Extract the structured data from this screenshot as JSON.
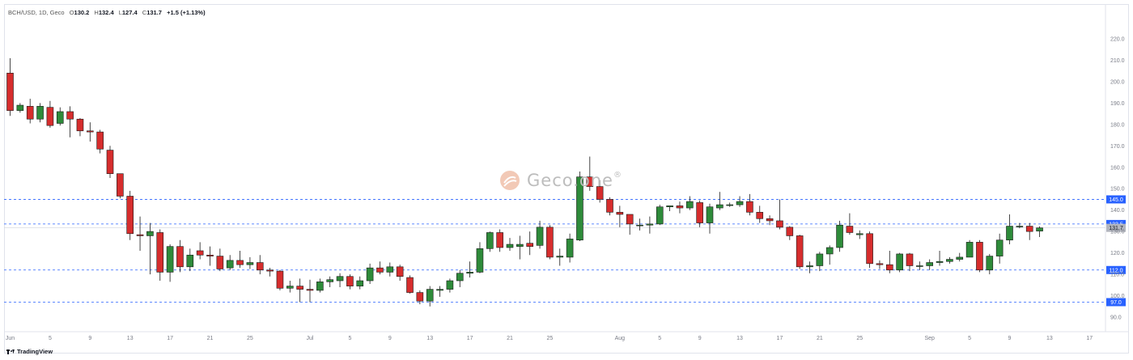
{
  "legend": {
    "symbol": "BCH/USD, 1D, Geco",
    "open_label": "O",
    "open": "130.2",
    "high_label": "H",
    "high": "132.4",
    "low_label": "L",
    "low": "127.4",
    "close_label": "C",
    "close": "131.7",
    "change": "+1.5 (+1.13%)"
  },
  "watermark": {
    "text": "Geco.one",
    "mark": "®"
  },
  "footer": {
    "brand": "TradingView"
  },
  "colors": {
    "up": "#2e8b3a",
    "down": "#d62d2d",
    "level": "#2962ff",
    "current_tag": "#b2b5be"
  },
  "chart_data": {
    "type": "candlestick",
    "symbol": "BCH/USD",
    "interval": "1D",
    "ylim": [
      84,
      225
    ],
    "y_ticks": [
      90.0,
      100.0,
      110.0,
      120.0,
      130.0,
      140.0,
      150.0,
      160.0,
      170.0,
      180.0,
      190.0,
      200.0,
      210.0,
      220.0
    ],
    "x_ticks": [
      {
        "i": 0,
        "label": "Jun"
      },
      {
        "i": 4,
        "label": "5"
      },
      {
        "i": 8,
        "label": "9"
      },
      {
        "i": 12,
        "label": "13"
      },
      {
        "i": 16,
        "label": "17"
      },
      {
        "i": 20,
        "label": "21"
      },
      {
        "i": 24,
        "label": "25"
      },
      {
        "i": 30,
        "label": "Jul"
      },
      {
        "i": 34,
        "label": "5"
      },
      {
        "i": 38,
        "label": "9"
      },
      {
        "i": 42,
        "label": "13"
      },
      {
        "i": 46,
        "label": "17"
      },
      {
        "i": 50,
        "label": "21"
      },
      {
        "i": 54,
        "label": "25"
      },
      {
        "i": 61,
        "label": "Aug"
      },
      {
        "i": 65,
        "label": "5"
      },
      {
        "i": 69,
        "label": "9"
      },
      {
        "i": 73,
        "label": "13"
      },
      {
        "i": 77,
        "label": "17"
      },
      {
        "i": 81,
        "label": "21"
      },
      {
        "i": 85,
        "label": "25"
      },
      {
        "i": 92,
        "label": "Sep"
      },
      {
        "i": 96,
        "label": "5"
      },
      {
        "i": 100,
        "label": "9"
      },
      {
        "i": 104,
        "label": "13"
      },
      {
        "i": 108,
        "label": "17"
      }
    ],
    "levels": [
      {
        "value": 145.0,
        "label": "145.0",
        "style": "dashed"
      },
      {
        "value": 133.5,
        "label": "133.5",
        "style": "dashed"
      },
      {
        "value": 112.0,
        "label": "112.0",
        "style": "dashed"
      },
      {
        "value": 97.0,
        "label": "97.0",
        "style": "dashed"
      }
    ],
    "current_price": {
      "value": 131.7,
      "label": "131.7"
    },
    "candles": [
      [
        204.0,
        186.5,
        211.0,
        184.0
      ],
      [
        186.5,
        189.0,
        190.0,
        185.5
      ],
      [
        188.5,
        182.5,
        192.0,
        180.5
      ],
      [
        182.5,
        188.5,
        190.0,
        181.0
      ],
      [
        188.0,
        179.5,
        191.0,
        178.5
      ],
      [
        180.5,
        186.0,
        188.0,
        179.5
      ],
      [
        186.0,
        182.5,
        188.5,
        174.0
      ],
      [
        182.5,
        177.0,
        183.0,
        174.5
      ],
      [
        177.0,
        176.5,
        181.0,
        172.0
      ],
      [
        176.5,
        168.5,
        177.5,
        166.5
      ],
      [
        168.0,
        157.0,
        170.0,
        155.0
      ],
      [
        157.0,
        146.5,
        157.0,
        145.5
      ],
      [
        146.5,
        129.0,
        149.0,
        126.0
      ],
      [
        128.5,
        128.0,
        137.0,
        121.0
      ],
      [
        128.0,
        130.0,
        134.0,
        110.0
      ],
      [
        129.5,
        111.0,
        131.0,
        107.0
      ],
      [
        111.0,
        123.0,
        124.0,
        106.5
      ],
      [
        123.0,
        113.5,
        126.0,
        111.0
      ],
      [
        113.5,
        119.0,
        122.0,
        111.5
      ],
      [
        121.0,
        119.0,
        125.0,
        117.0
      ],
      [
        119.0,
        118.5,
        123.0,
        114.0
      ],
      [
        118.5,
        112.5,
        122.0,
        111.5
      ],
      [
        113.0,
        116.5,
        119.0,
        112.0
      ],
      [
        116.5,
        114.5,
        121.0,
        113.0
      ],
      [
        114.5,
        115.5,
        118.0,
        112.5
      ],
      [
        115.5,
        112.0,
        119.0,
        110.0
      ],
      [
        112.0,
        111.5,
        113.0,
        109.0
      ],
      [
        111.5,
        103.5,
        112.0,
        102.5
      ],
      [
        103.5,
        104.5,
        107.0,
        101.5
      ],
      [
        104.5,
        103.0,
        108.0,
        97.0
      ],
      [
        103.0,
        102.5,
        107.5,
        97.0
      ],
      [
        102.5,
        106.5,
        108.0,
        101.5
      ],
      [
        106.5,
        107.5,
        109.0,
        104.0
      ],
      [
        107.0,
        109.0,
        110.5,
        104.0
      ],
      [
        109.0,
        104.5,
        110.0,
        103.0
      ],
      [
        104.5,
        107.0,
        109.0,
        103.0
      ],
      [
        107.0,
        113.0,
        115.0,
        105.5
      ],
      [
        113.0,
        111.0,
        116.0,
        110.0
      ],
      [
        111.0,
        113.5,
        115.5,
        109.0
      ],
      [
        113.5,
        109.0,
        114.5,
        107.0
      ],
      [
        108.5,
        101.5,
        109.5,
        101.0
      ],
      [
        101.5,
        97.5,
        102.5,
        96.0
      ],
      [
        97.5,
        103.0,
        104.5,
        95.0
      ],
      [
        102.5,
        103.0,
        104.5,
        99.5
      ],
      [
        103.0,
        107.0,
        108.0,
        101.5
      ],
      [
        107.0,
        110.5,
        112.0,
        104.0
      ],
      [
        110.5,
        111.0,
        116.0,
        108.5
      ],
      [
        111.0,
        122.0,
        125.0,
        110.5
      ],
      [
        122.0,
        129.5,
        130.0,
        120.5
      ],
      [
        129.5,
        122.5,
        131.0,
        120.5
      ],
      [
        122.5,
        124.0,
        127.0,
        121.0
      ],
      [
        123.0,
        124.0,
        128.0,
        117.0
      ],
      [
        124.5,
        123.0,
        130.0,
        119.0
      ],
      [
        123.5,
        132.0,
        135.0,
        122.0
      ],
      [
        132.0,
        118.0,
        133.0,
        117.0
      ],
      [
        118.0,
        118.5,
        122.0,
        114.0
      ],
      [
        118.0,
        126.5,
        129.0,
        115.5
      ],
      [
        126.0,
        155.5,
        158.0,
        125.5
      ],
      [
        155.5,
        151.0,
        165.0,
        149.0
      ],
      [
        151.0,
        145.0,
        154.0,
        143.5
      ],
      [
        145.0,
        139.0,
        146.0,
        137.5
      ],
      [
        139.0,
        138.0,
        142.0,
        132.0
      ],
      [
        138.0,
        133.5,
        138.0,
        128.5
      ],
      [
        133.0,
        133.0,
        136.0,
        130.5
      ],
      [
        133.0,
        133.5,
        137.0,
        129.0
      ],
      [
        133.5,
        141.5,
        142.5,
        133.0
      ],
      [
        141.5,
        142.0,
        142.0,
        139.5
      ],
      [
        142.0,
        141.0,
        144.0,
        138.5
      ],
      [
        141.0,
        144.0,
        146.5,
        140.0
      ],
      [
        143.5,
        134.0,
        144.5,
        132.0
      ],
      [
        134.0,
        141.5,
        143.0,
        129.0
      ],
      [
        141.0,
        142.5,
        148.5,
        140.0
      ],
      [
        142.5,
        142.5,
        143.5,
        141.5
      ],
      [
        142.5,
        144.0,
        146.5,
        141.5
      ],
      [
        144.0,
        139.0,
        147.5,
        137.5
      ],
      [
        139.0,
        136.0,
        142.0,
        134.0
      ],
      [
        136.0,
        135.0,
        137.5,
        133.0
      ],
      [
        135.0,
        132.0,
        145.0,
        131.0
      ],
      [
        132.0,
        128.0,
        132.5,
        126.0
      ],
      [
        128.0,
        113.5,
        128.5,
        112.5
      ],
      [
        113.5,
        114.0,
        116.0,
        110.5
      ],
      [
        114.0,
        119.5,
        120.5,
        111.5
      ],
      [
        119.5,
        122.5,
        123.5,
        114.5
      ],
      [
        122.5,
        133.0,
        135.0,
        120.5
      ],
      [
        132.5,
        129.5,
        138.5,
        128.5
      ],
      [
        128.5,
        129.0,
        130.5,
        126.5
      ],
      [
        129.0,
        115.0,
        130.0,
        113.0
      ],
      [
        115.0,
        114.5,
        116.5,
        112.5
      ],
      [
        114.5,
        112.0,
        121.0,
        110.5
      ],
      [
        112.0,
        119.5,
        120.0,
        111.0
      ],
      [
        119.5,
        114.0,
        120.0,
        111.5
      ],
      [
        114.0,
        114.0,
        116.0,
        112.0
      ],
      [
        114.0,
        115.5,
        117.0,
        112.0
      ],
      [
        115.5,
        116.0,
        121.0,
        114.0
      ],
      [
        116.0,
        117.0,
        118.0,
        115.0
      ],
      [
        117.0,
        118.0,
        120.0,
        116.0
      ],
      [
        118.0,
        125.0,
        126.0,
        118.0
      ],
      [
        125.0,
        112.0,
        126.0,
        111.0
      ],
      [
        112.0,
        118.5,
        119.5,
        110.0
      ],
      [
        118.5,
        126.0,
        129.0,
        115.0
      ],
      [
        126.0,
        132.5,
        138.0,
        124.0
      ],
      [
        132.5,
        132.5,
        134.0,
        131.5
      ],
      [
        132.5,
        130.0,
        134.0,
        126.0
      ],
      [
        130.2,
        131.7,
        132.4,
        127.4
      ]
    ]
  }
}
